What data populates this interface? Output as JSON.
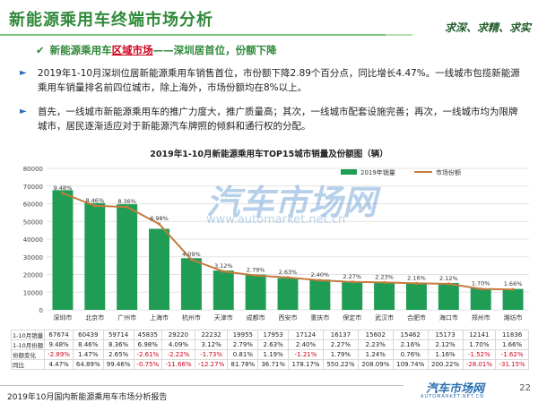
{
  "header": {
    "title": "新能源乘用车终端市场分析",
    "slogan": "求深、求精、求实",
    "subheading_prefix": "新能源乘用车",
    "subheading_highlight": "区域市场",
    "subheading_suffix": "——深圳居首位，份额下降"
  },
  "bullets": [
    "2019年1-10月深圳位居新能源乘用车销售首位，市份额下降2.89个百分点，同比增长4.47%。一线城市包揽新能源乘用车销量排名前四位城市，除上海外，市场份额均在8%以上。",
    "首先，一线城市新能源乘用车的推广力度大，推广质量高；其次，一线城市配套设施完善；再次，一线城市均为限牌城市，居民逐渐适应对于新能源汽车牌照的倾斜和通行权的分配。"
  ],
  "watermark": {
    "brand": "汽车市场网",
    "url": "www.automarket.net.cn"
  },
  "chart_data": {
    "type": "bar",
    "title": "2019年1-10月新能源乘用车TOP15城市销量及份额图（辆）",
    "categories": [
      "深圳市",
      "北京市",
      "广州市",
      "上海市",
      "杭州市",
      "天津市",
      "成都市",
      "西安市",
      "重庆市",
      "保定市",
      "武汉市",
      "合肥市",
      "海口市",
      "郑州市",
      "潍坊市"
    ],
    "series": [
      {
        "name": "2019年销量",
        "type": "bar",
        "color": "#1f9d55",
        "values": [
          67674,
          60439,
          59714,
          45835,
          29220,
          22232,
          19955,
          17953,
          17124,
          16137,
          15602,
          15462,
          15173,
          12141,
          11836
        ]
      },
      {
        "name": "市场份额",
        "type": "line",
        "color": "#c57b3e",
        "values": [
          9.48,
          8.46,
          8.36,
          6.98,
          4.09,
          3.12,
          2.79,
          2.63,
          2.4,
          2.27,
          2.23,
          2.16,
          2.12,
          1.7,
          1.66
        ]
      }
    ],
    "y_left_ticks": [
      "0",
      "10000",
      "20000",
      "30000",
      "40000",
      "50000",
      "60000",
      "70000",
      "80000"
    ],
    "ylim_left": [
      0,
      80000
    ],
    "ylim_right": [
      0,
      11.5
    ],
    "legend_position": "top-right",
    "grid": true
  },
  "table": {
    "row_labels": [
      "1-10月销量",
      "1-10月份额",
      "份额变化",
      "同比"
    ],
    "sales": [
      "67674",
      "60439",
      "59714",
      "45835",
      "29220",
      "22232",
      "19955",
      "17953",
      "17124",
      "16137",
      "15602",
      "15462",
      "15173",
      "12141",
      "11836"
    ],
    "share": [
      "9.48%",
      "8.46%",
      "8.36%",
      "6.98%",
      "4.09%",
      "3.12%",
      "2.79%",
      "2.63%",
      "2.40%",
      "2.27%",
      "2.23%",
      "2.16%",
      "2.12%",
      "1.70%",
      "1.66%"
    ],
    "share_change": [
      "-2.89%",
      "1.47%",
      "2.65%",
      "-2.61%",
      "-2.22%",
      "-1.73%",
      "0.81%",
      "1.19%",
      "-1.21%",
      "1.79%",
      "1.24%",
      "0.76%",
      "1.16%",
      "-1.52%",
      "-1.62%"
    ],
    "yoy": [
      "4.47%",
      "64.89%",
      "99.46%",
      "-0.75%",
      "-11.66%",
      "-12.27%",
      "81.78%",
      "36.71%",
      "178.17%",
      "550.22%",
      "208.09%",
      "109.74%",
      "200.22%",
      "-28.01%",
      "-31.15%"
    ]
  },
  "footer": {
    "report_title": "2019年10月国内新能源乘用车市场分析报告",
    "logo_text": "汽车市场网",
    "logo_sub": "AUTOMARKET.NET.CN",
    "page_number": "22"
  }
}
